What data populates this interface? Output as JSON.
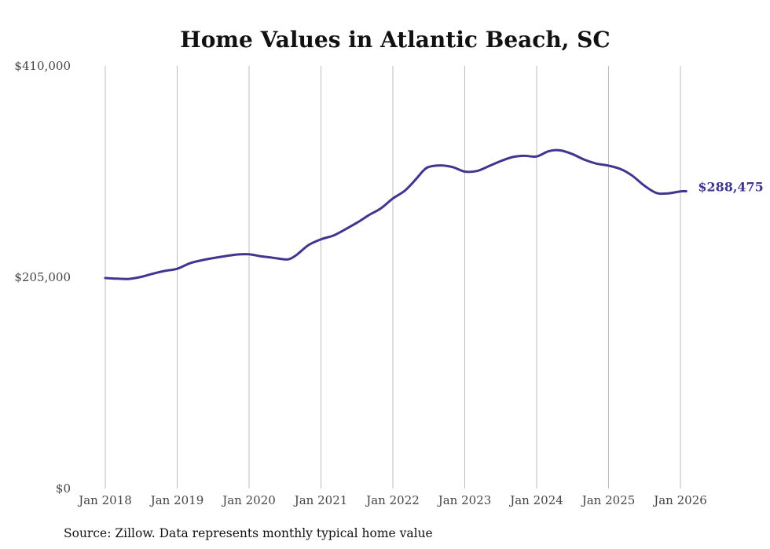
{
  "chart_data": {
    "type": "line",
    "title": "Home Values in Atlantic Beach, SC",
    "xlabel": "",
    "ylabel": "",
    "ylim": [
      0,
      410000
    ],
    "y_ticks": [
      {
        "value": 0,
        "label": "$0"
      },
      {
        "value": 205000,
        "label": "$205,000"
      },
      {
        "value": 410000,
        "label": "$410,000"
      }
    ],
    "x_ticks": [
      {
        "t": 2018,
        "label": "Jan 2018"
      },
      {
        "t": 2019,
        "label": "Jan 2019"
      },
      {
        "t": 2020,
        "label": "Jan 2020"
      },
      {
        "t": 2021,
        "label": "Jan 2021"
      },
      {
        "t": 2022,
        "label": "Jan 2022"
      },
      {
        "t": 2023,
        "label": "Jan 2023"
      },
      {
        "t": 2024,
        "label": "Jan 2024"
      },
      {
        "t": 2025,
        "label": "Jan 2025"
      },
      {
        "t": 2026,
        "label": "Jan 2026"
      }
    ],
    "xlim": [
      2018,
      2026
    ],
    "grid": "vertical",
    "series": [
      {
        "name": "Typical home value",
        "color": "#3f3690",
        "end_label": "$288,475",
        "points": [
          [
            2018.0,
            204200
          ],
          [
            2018.17,
            203600
          ],
          [
            2018.33,
            203400
          ],
          [
            2018.5,
            205400
          ],
          [
            2018.67,
            208600
          ],
          [
            2018.83,
            211200
          ],
          [
            2019.0,
            213200
          ],
          [
            2019.17,
            218400
          ],
          [
            2019.33,
            221300
          ],
          [
            2019.5,
            223600
          ],
          [
            2019.67,
            225500
          ],
          [
            2019.83,
            227000
          ],
          [
            2020.0,
            227300
          ],
          [
            2020.17,
            225300
          ],
          [
            2020.33,
            223900
          ],
          [
            2020.5,
            222300
          ],
          [
            2020.58,
            223200
          ],
          [
            2020.67,
            227200
          ],
          [
            2020.83,
            236300
          ],
          [
            2021.0,
            241800
          ],
          [
            2021.17,
            245400
          ],
          [
            2021.33,
            251200
          ],
          [
            2021.5,
            257900
          ],
          [
            2021.67,
            265400
          ],
          [
            2021.83,
            271700
          ],
          [
            2022.0,
            281400
          ],
          [
            2022.17,
            289200
          ],
          [
            2022.33,
            300900
          ],
          [
            2022.42,
            308100
          ],
          [
            2022.5,
            312100
          ],
          [
            2022.67,
            313500
          ],
          [
            2022.83,
            311900
          ],
          [
            2023.0,
            307500
          ],
          [
            2023.17,
            308100
          ],
          [
            2023.33,
            312700
          ],
          [
            2023.5,
            317700
          ],
          [
            2023.67,
            321700
          ],
          [
            2023.83,
            322800
          ],
          [
            2024.0,
            322200
          ],
          [
            2024.17,
            327400
          ],
          [
            2024.33,
            328100
          ],
          [
            2024.5,
            324400
          ],
          [
            2024.67,
            318900
          ],
          [
            2024.83,
            315300
          ],
          [
            2025.0,
            313300
          ],
          [
            2025.17,
            309900
          ],
          [
            2025.33,
            303500
          ],
          [
            2025.5,
            293800
          ],
          [
            2025.67,
            286700
          ],
          [
            2025.83,
            286400
          ],
          [
            2026.0,
            288300
          ],
          [
            2026.08,
            288475
          ]
        ]
      }
    ],
    "source": "Source: Zillow. Data represents monthly typical home value"
  }
}
